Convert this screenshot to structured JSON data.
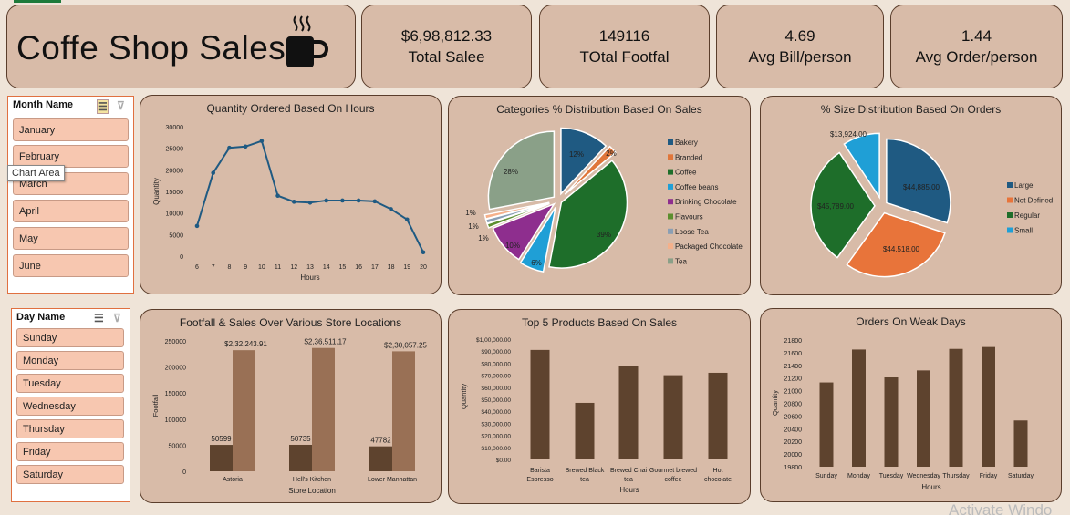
{
  "header": {
    "title": "Coffe Shop Sales",
    "cup_icon": "coffee-cup-icon"
  },
  "kpis": [
    {
      "value": "$6,98,812.33",
      "label": "Total Salee"
    },
    {
      "value": "149116",
      "label": "TOtal Footfal"
    },
    {
      "value": "4.69",
      "label": "Avg Bill/person"
    },
    {
      "value": "1.44",
      "label": "Avg Order/person"
    }
  ],
  "month_slicer": {
    "title": "Month Name",
    "items": [
      "January",
      "February",
      "March",
      "April",
      "May",
      "June"
    ]
  },
  "day_slicer": {
    "title": "Day Name",
    "items": [
      "Sunday",
      "Monday",
      "Tuesday",
      "Wednesday",
      "Thursday",
      "Friday",
      "Saturday"
    ]
  },
  "tooltip": "Chart Area",
  "watermark": "Activate Windo",
  "chart_data": [
    {
      "id": "hours",
      "type": "line",
      "title": "Quantity Ordered Based On Hours",
      "xlabel": "Hours",
      "ylabel": "Quantity",
      "x": [
        "6",
        "7",
        "8",
        "9",
        "10",
        "11",
        "12",
        "13",
        "14",
        "15",
        "16",
        "17",
        "18",
        "19",
        "20"
      ],
      "values": [
        7000,
        19300,
        25100,
        25400,
        26700,
        14000,
        12600,
        12400,
        12900,
        12900,
        12900,
        12700,
        10900,
        8500,
        900
      ],
      "ylim": [
        0,
        30000
      ],
      "yticks": [
        "0",
        "5000",
        "10000",
        "15000",
        "20000",
        "25000",
        "30000"
      ],
      "color": "#1f5a82"
    },
    {
      "id": "categories",
      "type": "pie",
      "title": "Categories % Distribution Based On Sales",
      "slices": [
        {
          "name": "Bakery",
          "value": 12,
          "label": "12%",
          "color": "#1f5a82"
        },
        {
          "name": "Branded",
          "value": 2,
          "label": "2%",
          "color": "#e0763a"
        },
        {
          "name": "Coffee",
          "value": 39,
          "label": "39%",
          "color": "#1e6e2a"
        },
        {
          "name": "Coffee beans",
          "value": 6,
          "label": "6%",
          "color": "#1f9fd6"
        },
        {
          "name": "Drinking Chocolate",
          "value": 10,
          "label": "10%",
          "color": "#8e2e8e"
        },
        {
          "name": "Flavours",
          "value": 1,
          "label": "1%",
          "color": "#5c8e2e"
        },
        {
          "name": "Loose Tea",
          "value": 1,
          "label": "1%",
          "color": "#8a9fb4"
        },
        {
          "name": "Packaged Chocolate",
          "value": 1,
          "label": "1%",
          "color": "#f5b08a"
        },
        {
          "name": "Tea",
          "value": 28,
          "label": "28%",
          "color": "#8aa088"
        }
      ]
    },
    {
      "id": "sizes",
      "type": "pie",
      "title": "% Size Distribution Based On Orders",
      "slices": [
        {
          "name": "Large",
          "value": 44885,
          "label": "$44,885.00",
          "color": "#1f5a82"
        },
        {
          "name": "Not Defined",
          "value": 44518,
          "label": "$44,518.00",
          "color": "#e8743a"
        },
        {
          "name": "Regular",
          "value": 45789,
          "label": "$45,789.00",
          "color": "#1e6e2a"
        },
        {
          "name": "Small",
          "value": 13924,
          "label": "$13,924.00",
          "color": "#1f9fd6"
        }
      ]
    },
    {
      "id": "stores",
      "type": "bar",
      "title": "Footfall & Sales  Over Various Store Locations",
      "xlabel": "Store Location",
      "ylabel": "Footfall",
      "categories": [
        "Astoria",
        "Hell's Kitchen",
        "Lower Manhattan"
      ],
      "series": [
        {
          "values": [
            50599,
            50735,
            47782
          ],
          "labels": [
            "50599",
            "50735",
            "47782"
          ],
          "color": "#5e432e"
        },
        {
          "values": [
            232243.91,
            236511.17,
            230057.25
          ],
          "labels": [
            "$2,32,243.91",
            "$2,36,511.17",
            "$2,30,057.25"
          ],
          "color": "#997055"
        }
      ],
      "ylim": [
        0,
        250000
      ],
      "yticks": [
        "0",
        "50000",
        "100000",
        "150000",
        "200000",
        "250000"
      ]
    },
    {
      "id": "products",
      "type": "bar",
      "title": "Top 5 Products Based On Sales",
      "xlabel": "Hours",
      "ylabel": "Quantity",
      "categories": [
        "Barista Espresso",
        "Brewed Black tea",
        "Brewed Chai tea",
        "Gourmet brewed coffee",
        "Hot chocolate"
      ],
      "values": [
        91000,
        47000,
        78000,
        70000,
        72000
      ],
      "ylim": [
        0,
        100000
      ],
      "yticks": [
        "$0.00",
        "$10,000.00",
        "$20,000.00",
        "$30,000.00",
        "$40,000.00",
        "$50,000.00",
        "$60,000.00",
        "$70,000.00",
        "$80,000.00",
        "$90,000.00",
        "$1,00,000.00"
      ],
      "color": "#5e432e"
    },
    {
      "id": "weekdays",
      "type": "bar",
      "title": "Orders On Weak Days",
      "xlabel": "Hours",
      "ylabel": "Quantity",
      "categories": [
        "Sunday",
        "Monday",
        "Tuesday",
        "Wednesday",
        "Thursday",
        "Friday",
        "Saturday"
      ],
      "values": [
        21130,
        21650,
        21210,
        21320,
        21660,
        21690,
        20530
      ],
      "ylim": [
        19800,
        21800
      ],
      "yticks": [
        "19800",
        "20000",
        "20200",
        "20400",
        "20600",
        "20800",
        "21000",
        "21200",
        "21400",
        "21600",
        "21800"
      ],
      "color": "#5e432e"
    }
  ]
}
